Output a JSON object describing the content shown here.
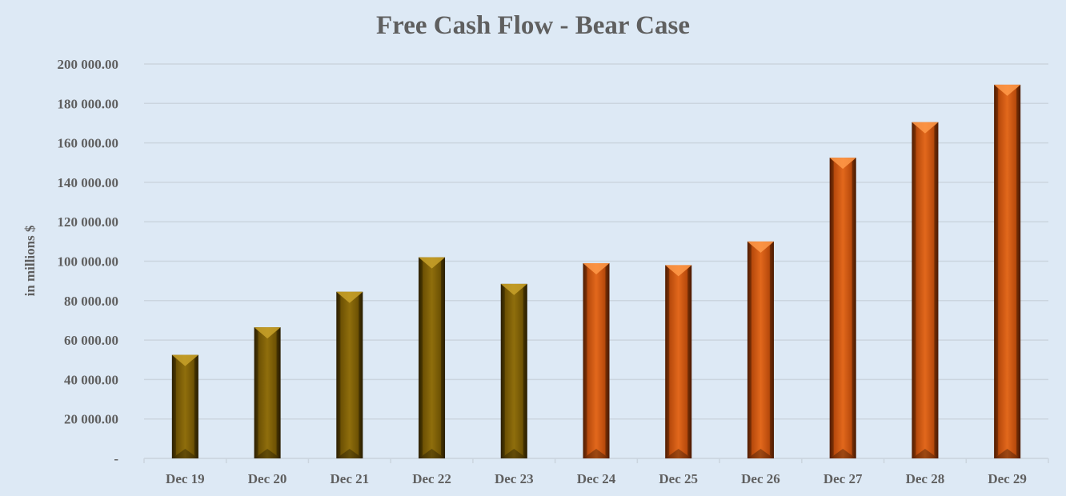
{
  "chart_data": {
    "type": "bar",
    "title": "Free Cash Flow - Bear Case",
    "ylabel": "in millions $",
    "xlabel": "",
    "categories": [
      "Dec 19",
      "Dec 20",
      "Dec 21",
      "Dec 22",
      "Dec 23",
      "Dec 24",
      "Dec 25",
      "Dec 26",
      "Dec 27",
      "Dec 28",
      "Dec 29"
    ],
    "values": [
      52500,
      66500,
      84500,
      102000,
      88500,
      99000,
      98000,
      110000,
      152500,
      170500,
      189500
    ],
    "bar_groups": [
      "historical",
      "historical",
      "historical",
      "historical",
      "historical",
      "projected",
      "projected",
      "projected",
      "projected",
      "projected",
      "projected"
    ],
    "ylim": [
      0,
      200000
    ],
    "yticks": [
      0,
      20000,
      40000,
      60000,
      80000,
      100000,
      120000,
      140000,
      160000,
      180000,
      200000
    ],
    "ytick_labels": [
      "-",
      "20 000.00",
      "40 000.00",
      "60 000.00",
      "80 000.00",
      "100 000.00",
      "120 000.00",
      "140 000.00",
      "160 000.00",
      "180 000.00",
      "200 000.00"
    ],
    "grid": true,
    "legend": "none",
    "colors": {
      "historical": "#7d5e05",
      "projected": "#d65a12",
      "gridline": "#cbd5df",
      "text": "#5f5f5f"
    }
  }
}
